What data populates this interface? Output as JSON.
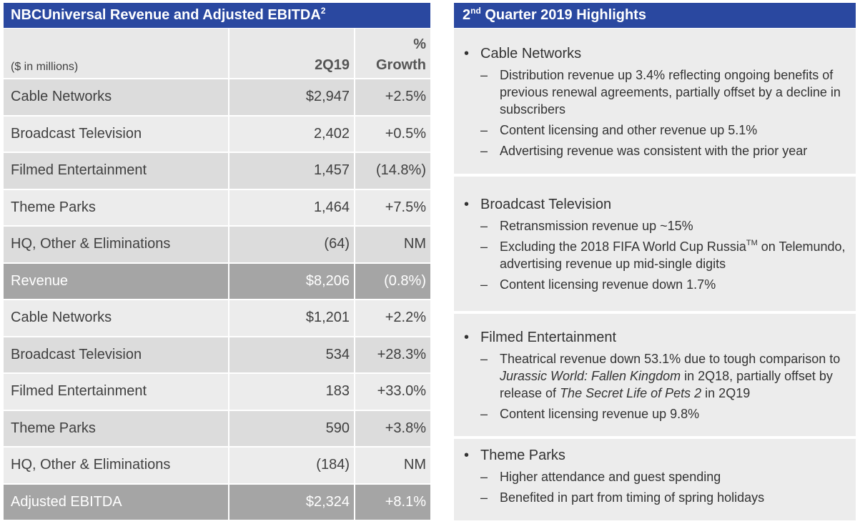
{
  "left": {
    "title": "NBCUniversal Revenue and Adjusted EBITDA",
    "title_sup": "2",
    "units": "($ in millions)",
    "col_period": "2Q19",
    "col_growth_1": "%",
    "col_growth_2": "Growth",
    "rows": [
      {
        "label": "Cable Networks",
        "value": "$2,947",
        "growth": "+2.5%"
      },
      {
        "label": "Broadcast Television",
        "value": "2,402",
        "growth": "+0.5%"
      },
      {
        "label": "Filmed Entertainment",
        "value": "1,457",
        "growth": "(14.8%)"
      },
      {
        "label": "Theme Parks",
        "value": "1,464",
        "growth": "+7.5%"
      },
      {
        "label": "HQ, Other & Eliminations",
        "value": "(64)",
        "growth": "NM"
      },
      {
        "label": "Revenue",
        "value": "$8,206",
        "growth": "(0.8%)"
      },
      {
        "label": "Cable Networks",
        "value": "$1,201",
        "growth": "+2.2%"
      },
      {
        "label": "Broadcast Television",
        "value": "534",
        "growth": "+28.3%"
      },
      {
        "label": "Filmed Entertainment",
        "value": "183",
        "growth": "+33.0%"
      },
      {
        "label": "Theme Parks",
        "value": "590",
        "growth": "+3.8%"
      },
      {
        "label": "HQ, Other & Eliminations",
        "value": "(184)",
        "growth": "NM"
      },
      {
        "label": "Adjusted EBITDA",
        "value": "$2,324",
        "growth": "+8.1%"
      }
    ]
  },
  "right": {
    "title_num": "2",
    "title_sup": "nd",
    "title_rest": " Quarter 2019 Highlights",
    "sections": [
      {
        "heading": "Cable Networks",
        "items": [
          "Distribution revenue up 3.4% reflecting ongoing benefits of previous renewal agreements, partially offset by a decline in subscribers",
          "Content licensing and other revenue up 5.1%",
          "Advertising revenue was consistent with the prior year"
        ]
      },
      {
        "heading": "Broadcast Television",
        "items": [
          "Retransmission revenue up ~15%",
          {
            "a": "Excluding the 2018 FIFA World Cup Russia",
            "tm": "TM",
            "b": " on Telemundo, advertising revenue up mid-single digits"
          },
          "Content licensing revenue down 1.7%"
        ]
      },
      {
        "heading": "Filmed Entertainment",
        "items": [
          {
            "a": "Theatrical revenue down 53.1% due to tough comparison to ",
            "i1": "Jurassic World: Fallen Kingdom",
            "b": " in 2Q18, partially offset by release of ",
            "i2": "The Secret Life of Pets 2",
            "c": " in 2Q19"
          },
          "Content licensing revenue up 9.8%"
        ]
      },
      {
        "heading": "Theme Parks",
        "items": [
          "Higher attendance and guest spending",
          "Benefited in part from timing of spring holidays"
        ]
      }
    ]
  },
  "colors": {
    "header": "#2a48a0",
    "total_row": "#a5a5a5",
    "row_dark": "#dcdcdc",
    "row_light": "#ececec"
  }
}
